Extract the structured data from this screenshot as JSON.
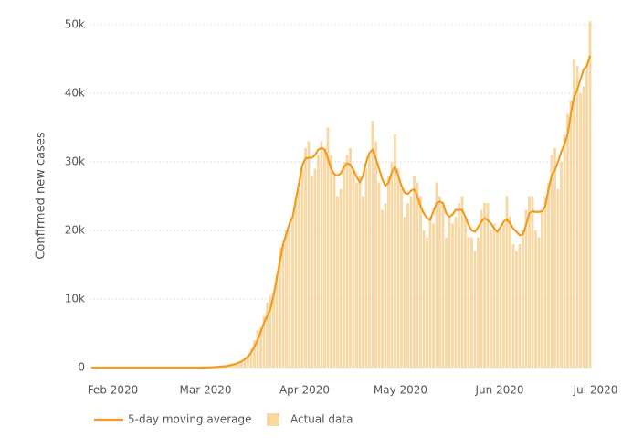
{
  "chart_data": {
    "type": "bar",
    "y_label": "Confirmed new cases",
    "categories": [
      null,
      null,
      null,
      null,
      null,
      "Feb 2020",
      null,
      null,
      null,
      null,
      null,
      null,
      null,
      null,
      null,
      null,
      null,
      null,
      null,
      null,
      null,
      null,
      null,
      null,
      null,
      null,
      null,
      null,
      null,
      null,
      null,
      null,
      null,
      null,
      "Mar 2020",
      null,
      null,
      null,
      null,
      null,
      null,
      null,
      null,
      null,
      null,
      null,
      null,
      null,
      null,
      null,
      null,
      null,
      null,
      null,
      null,
      null,
      null,
      null,
      null,
      null,
      null,
      null,
      null,
      null,
      null,
      "Apr 2020",
      null,
      null,
      null,
      null,
      null,
      null,
      null,
      null,
      null,
      null,
      null,
      null,
      null,
      null,
      null,
      null,
      null,
      null,
      null,
      null,
      null,
      null,
      null,
      null,
      null,
      null,
      null,
      null,
      null,
      "May 2020",
      null,
      null,
      null,
      null,
      null,
      null,
      null,
      null,
      null,
      null,
      null,
      null,
      null,
      null,
      null,
      null,
      null,
      null,
      null,
      null,
      null,
      null,
      null,
      null,
      null,
      null,
      null,
      null,
      null,
      null,
      "Jun 2020",
      null,
      null,
      null,
      null,
      null,
      null,
      null,
      null,
      null,
      null,
      null,
      null,
      null,
      null,
      null,
      null,
      null,
      null,
      null,
      null,
      null,
      null,
      null,
      null,
      null,
      null,
      null,
      null,
      null,
      "Jul 2020"
    ],
    "series": [
      {
        "name": "Actual data",
        "type": "bar",
        "color": "#f8d7a3",
        "values": [
          0,
          0,
          0,
          0,
          0,
          0,
          0,
          0,
          0,
          0,
          0,
          0,
          0,
          0,
          0,
          0,
          0,
          0,
          0,
          0,
          0,
          0,
          0,
          0,
          0,
          0,
          0,
          0,
          0,
          0,
          0,
          0,
          0,
          0,
          5,
          10,
          25,
          40,
          70,
          100,
          130,
          170,
          230,
          300,
          450,
          550,
          700,
          1000,
          1200,
          1800,
          2800,
          4000,
          5500,
          5800,
          7500,
          9500,
          10500,
          11000,
          13500,
          17500,
          18000,
          20000,
          20000,
          22000,
          25000,
          26000,
          29000,
          32000,
          33000,
          28000,
          29000,
          31000,
          33000,
          32000,
          35000,
          31000,
          28000,
          25000,
          26000,
          30000,
          31000,
          32000,
          29000,
          27000,
          28000,
          25000,
          29000,
          31000,
          36000,
          33000,
          27000,
          23000,
          24000,
          28000,
          30000,
          34000,
          29000,
          26000,
          22000,
          24000,
          25000,
          28000,
          27000,
          25000,
          20000,
          19000,
          22000,
          21000,
          27000,
          25000,
          24000,
          19000,
          22000,
          21000,
          22000,
          24000,
          25000,
          22000,
          19000,
          19000,
          17000,
          19000,
          23000,
          24000,
          24000,
          20000,
          21000,
          20000,
          20000,
          21000,
          25000,
          22000,
          18000,
          17000,
          18000,
          20000,
          23000,
          25000,
          25000,
          20000,
          19000,
          23000,
          25000,
          27000,
          31000,
          32000,
          26000,
          30000,
          34000,
          37000,
          39000,
          45000,
          44000,
          40000,
          41000,
          44000,
          50500
        ]
      },
      {
        "name": "5-day moving average",
        "type": "line",
        "color": "#f39c1f",
        "values": [
          0,
          0,
          0,
          0,
          0,
          0,
          0,
          0,
          0,
          0,
          0,
          0,
          0,
          0,
          0,
          0,
          0,
          0,
          0,
          0,
          0,
          0,
          0,
          0,
          0,
          0,
          0,
          0,
          0,
          0,
          0,
          0,
          0,
          0,
          10,
          15,
          20,
          30,
          50,
          80,
          120,
          160,
          200,
          300,
          400,
          500,
          700,
          900,
          1200,
          1600,
          2200,
          3000,
          4000,
          5200,
          6500,
          7500,
          8500,
          10500,
          13000,
          15500,
          18000,
          19500,
          21000,
          22000,
          24500,
          27000,
          29500,
          30500,
          30600,
          30600,
          31000,
          31800,
          32000,
          31800,
          30500,
          29000,
          28200,
          28000,
          28300,
          29200,
          29800,
          29600,
          28800,
          27800,
          27000,
          28000,
          30000,
          31300,
          31800,
          30500,
          29000,
          27500,
          26500,
          27000,
          28500,
          29300,
          28000,
          26500,
          25500,
          25300,
          25800,
          26000,
          25000,
          23500,
          22500,
          21800,
          21500,
          22800,
          24000,
          24200,
          24000,
          22500,
          22000,
          22300,
          23000,
          23000,
          23000,
          22000,
          20800,
          20000,
          19800,
          20500,
          21300,
          21800,
          21500,
          21000,
          20300,
          19800,
          20500,
          21300,
          21600,
          21000,
          20300,
          19800,
          19300,
          19400,
          20800,
          22500,
          22800,
          22700,
          22700,
          22800,
          23500,
          26000,
          28000,
          28800,
          30000,
          31500,
          32500,
          34000,
          37000,
          39500,
          40500,
          42000,
          43500,
          44000,
          45500
        ]
      }
    ],
    "ylim": [
      0,
      50000
    ],
    "yticks": [
      0,
      {
        "value": 10000,
        "label": "10k"
      },
      {
        "value": 20000,
        "label": "20k"
      },
      {
        "value": 30000,
        "label": "30k"
      },
      {
        "value": 40000,
        "label": "40k"
      },
      {
        "value": 50000,
        "label": "50k"
      }
    ],
    "grid": true,
    "legend": "bottom"
  }
}
